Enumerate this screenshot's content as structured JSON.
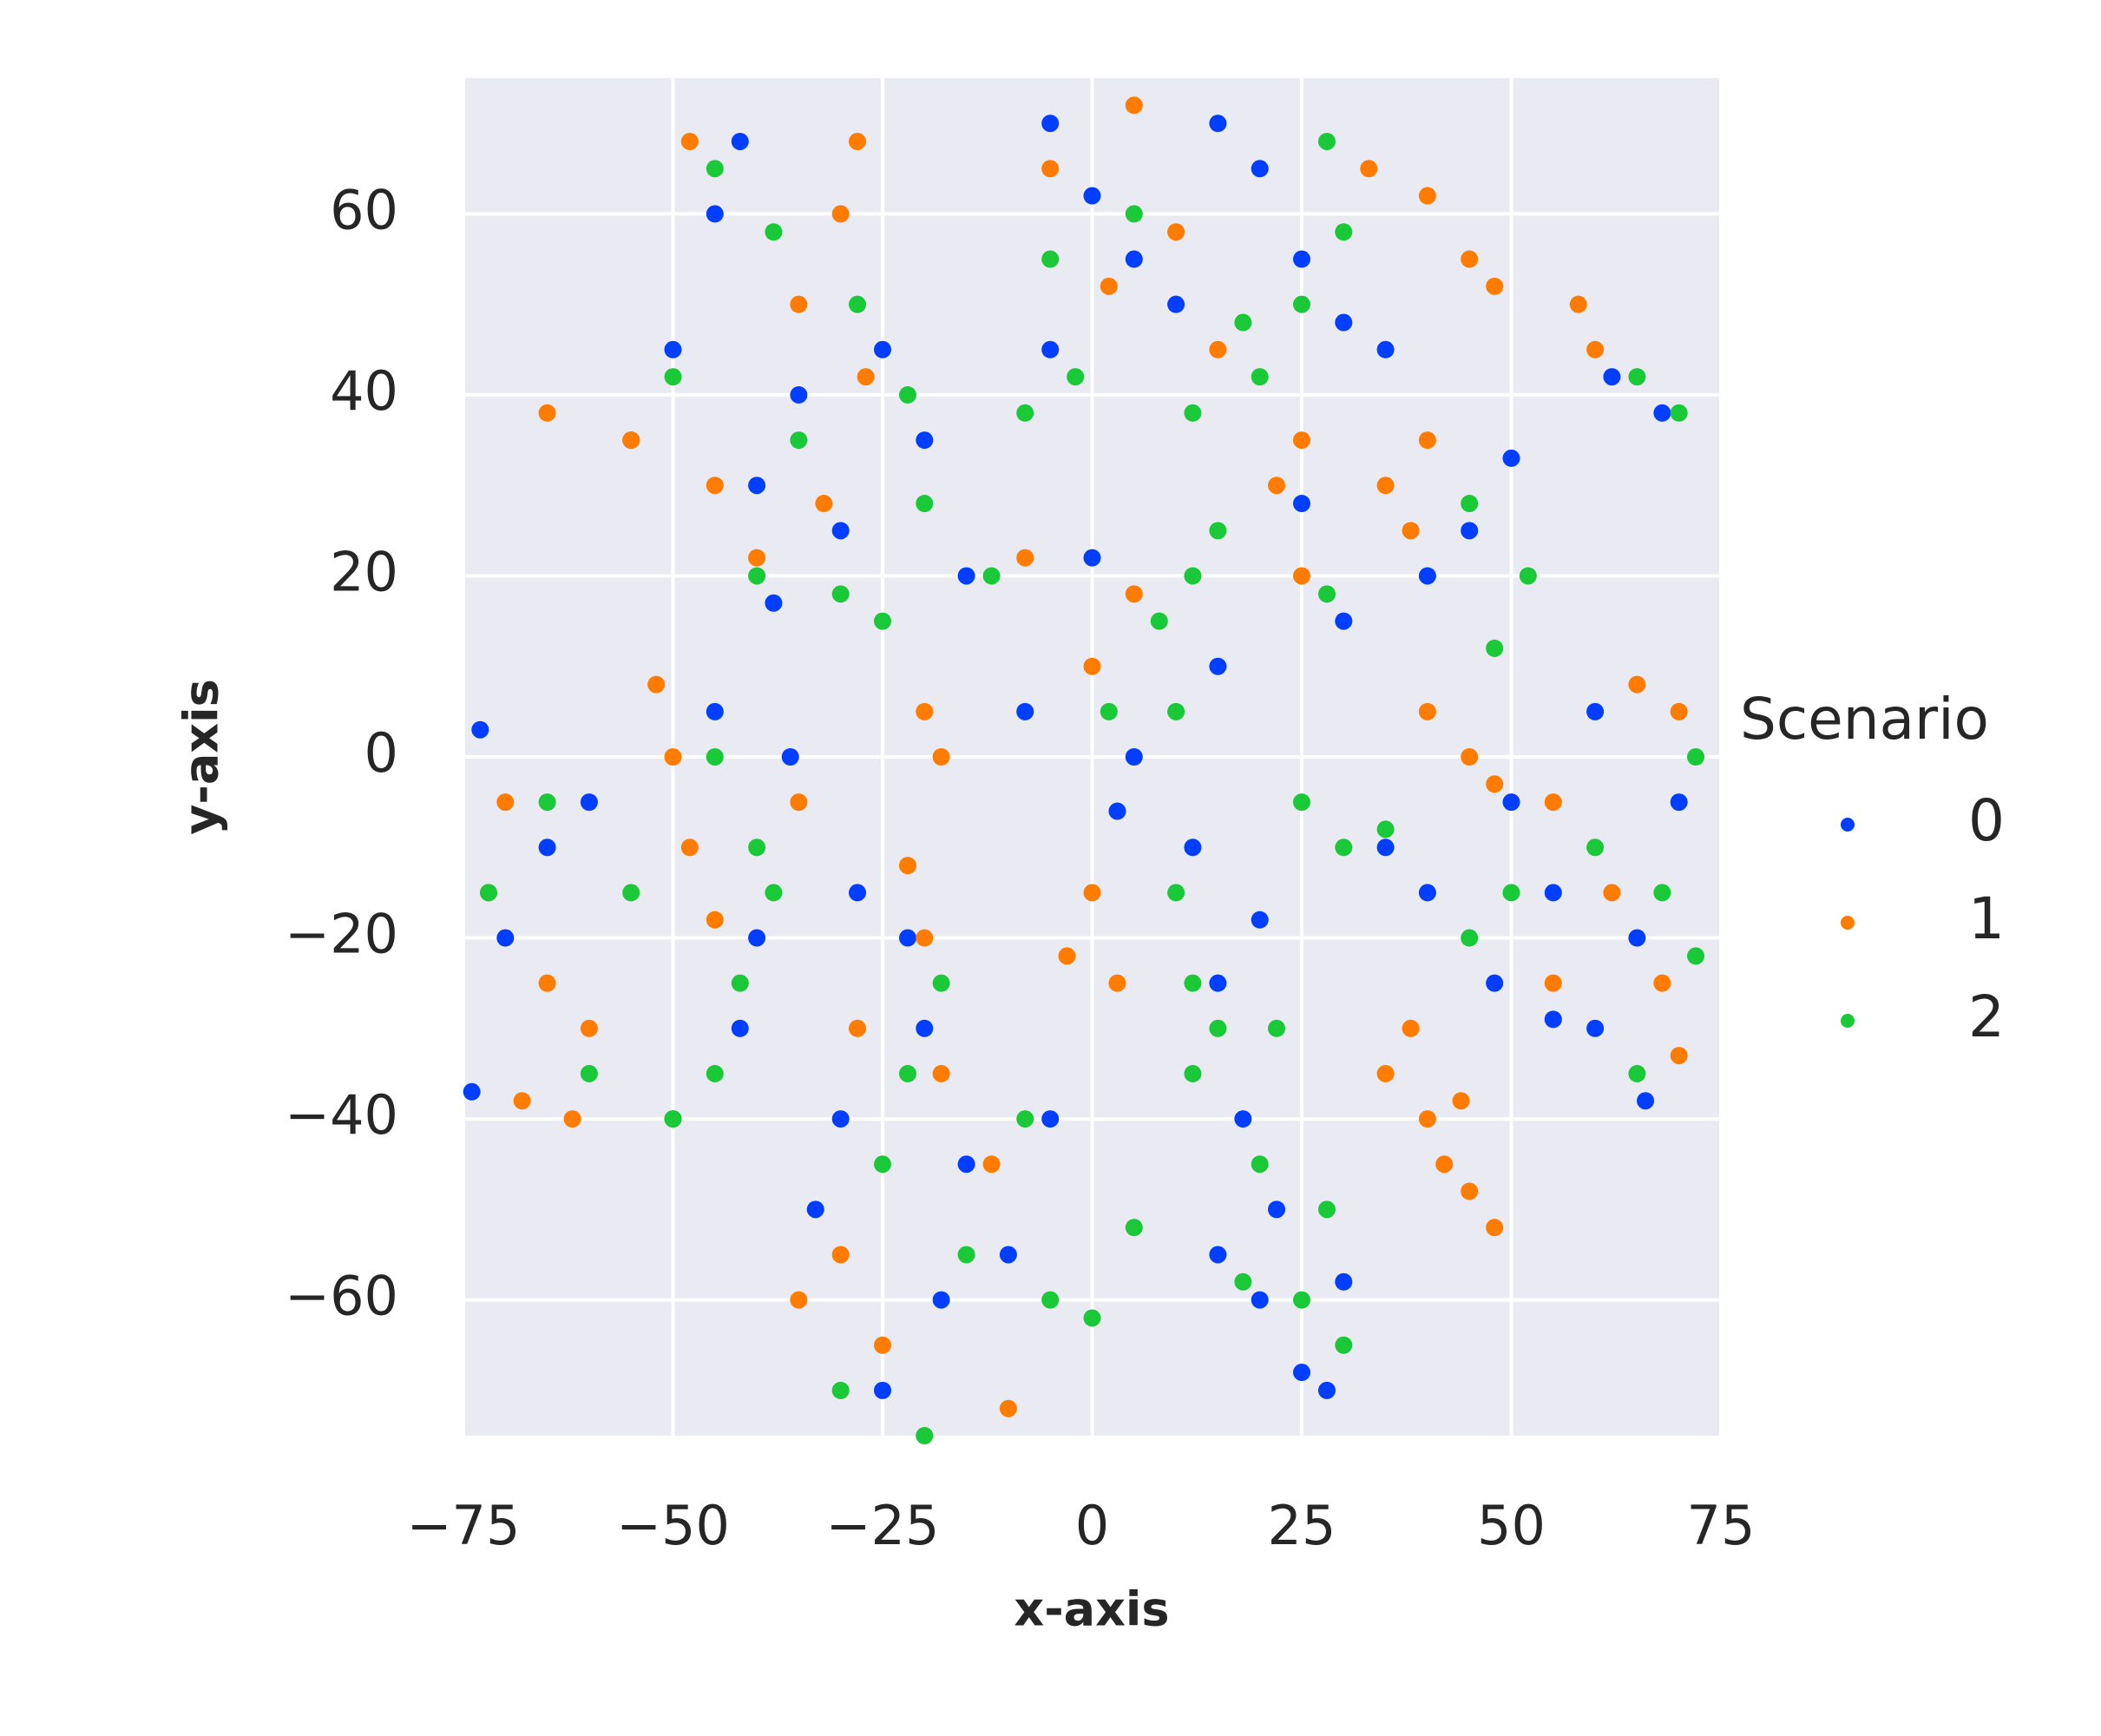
{
  "chart_data": {
    "type": "scatter",
    "xlabel": "x-axis",
    "ylabel": "y-axis",
    "legend_title": "Scenario",
    "legend_position": "outside right",
    "grid": true,
    "background": "#eaeaf2",
    "xlim": [
      -75,
      75
    ],
    "ylim": [
      -75,
      75
    ],
    "xticks": [
      {
        "value": -75,
        "label": "−75"
      },
      {
        "value": -50,
        "label": "−50"
      },
      {
        "value": -25,
        "label": "−25"
      },
      0,
      25,
      50,
      75
    ],
    "yticks": [
      {
        "value": -60,
        "label": "−60"
      },
      {
        "value": -40,
        "label": "−40"
      },
      {
        "value": -20,
        "label": "−20"
      },
      0,
      20,
      40,
      60
    ],
    "series": [
      {
        "name": "0",
        "color": "#023eff",
        "x": [
          -42,
          -45,
          -50,
          -55,
          -40,
          -35,
          -30,
          -25,
          -38,
          -20,
          -5,
          0,
          5,
          15,
          20,
          25,
          -5,
          30,
          10,
          35,
          -15,
          -8,
          0,
          5,
          15,
          25,
          45,
          50,
          40,
          30,
          -73,
          -70,
          -65,
          -74,
          -60,
          -45,
          -40,
          -50,
          -42,
          -36,
          -28,
          -33,
          -20,
          -25,
          -15,
          -10,
          -5,
          -18,
          -30,
          -22,
          12,
          15,
          20,
          18,
          22,
          25,
          28,
          20,
          30,
          15,
          35,
          40,
          50,
          55,
          60,
          65,
          70,
          48,
          60,
          66,
          68,
          62,
          55,
          3
        ],
        "y": [
          68,
          60,
          45,
          35,
          30,
          40,
          25,
          45,
          17,
          35,
          70,
          62,
          55,
          70,
          65,
          55,
          45,
          48,
          50,
          45,
          20,
          5,
          22,
          0,
          10,
          28,
          25,
          33,
          20,
          15,
          3,
          -20,
          -10,
          -37,
          -5,
          5,
          -20,
          -40,
          -30,
          0,
          -15,
          -50,
          -30,
          -70,
          -45,
          -55,
          -40,
          -60,
          -40,
          -20,
          -10,
          -25,
          -18,
          -40,
          -50,
          -68,
          -70,
          -60,
          -58,
          -55,
          -10,
          -15,
          -5,
          -15,
          5,
          -20,
          -5,
          -25,
          -30,
          -38,
          38,
          42,
          -29,
          -6
        ]
      },
      {
        "name": "1",
        "color": "#ff7c00",
        "x": [
          -48,
          -28,
          -30,
          -35,
          -27,
          -65,
          -55,
          -45,
          -32,
          -40,
          -5,
          5,
          10,
          2,
          15,
          25,
          33,
          40,
          45,
          48,
          -20,
          -18,
          0,
          5,
          -8,
          25,
          22,
          35,
          38,
          40,
          -52,
          -50,
          -48,
          -45,
          -70,
          -72,
          -65,
          -60,
          -68,
          -62,
          -35,
          -22,
          -20,
          -28,
          -30,
          -35,
          -25,
          -12,
          -18,
          -10,
          0,
          -3,
          3,
          38,
          40,
          45,
          48,
          42,
          35,
          44,
          40,
          45,
          48,
          55,
          65,
          70,
          68,
          62,
          55,
          70,
          58,
          60
        ],
        "y": [
          68,
          68,
          60,
          50,
          42,
          38,
          35,
          30,
          28,
          22,
          65,
          72,
          58,
          52,
          45,
          35,
          65,
          62,
          55,
          52,
          5,
          0,
          10,
          18,
          22,
          20,
          30,
          30,
          25,
          35,
          8,
          0,
          -10,
          -18,
          -5,
          -15,
          -25,
          -30,
          -38,
          -40,
          -5,
          -12,
          -20,
          -30,
          -55,
          -60,
          -65,
          -45,
          -35,
          -72,
          -15,
          -22,
          -25,
          -30,
          -40,
          -48,
          -52,
          -45,
          -35,
          -38,
          5,
          0,
          -3,
          -5,
          8,
          5,
          -25,
          -15,
          -25,
          -33,
          50,
          45
        ]
      },
      {
        "name": "2",
        "color": "#1ac938",
        "x": [
          -45,
          -38,
          -28,
          -50,
          -35,
          -22,
          -20,
          -40,
          -30,
          -25,
          -8,
          -2,
          -5,
          5,
          12,
          18,
          25,
          30,
          28,
          20,
          -12,
          2,
          8,
          12,
          10,
          15,
          28,
          45,
          52,
          48,
          -72,
          -65,
          -60,
          -55,
          -45,
          -42,
          -40,
          -38,
          -50,
          -45,
          -22,
          -18,
          -25,
          -15,
          -8,
          -30,
          -20,
          -5,
          0,
          5,
          10,
          12,
          15,
          20,
          28,
          25,
          30,
          18,
          12,
          22,
          25,
          30,
          35,
          45,
          50,
          60,
          68,
          72,
          65,
          72,
          65,
          70
        ],
        "y": [
          65,
          58,
          50,
          42,
          35,
          40,
          28,
          20,
          18,
          15,
          38,
          42,
          55,
          60,
          38,
          48,
          50,
          58,
          68,
          42,
          20,
          5,
          15,
          20,
          5,
          25,
          18,
          28,
          20,
          12,
          -15,
          -5,
          -35,
          -15,
          -35,
          -25,
          -10,
          -15,
          -40,
          0,
          -35,
          -25,
          -45,
          -55,
          -40,
          -70,
          -75,
          -60,
          -62,
          -52,
          -15,
          -25,
          -30,
          -45,
          -50,
          -60,
          -65,
          -58,
          -35,
          -30,
          -5,
          -10,
          -8,
          -20,
          -15,
          -10,
          -15,
          -22,
          -35,
          0,
          42,
          38
        ]
      }
    ]
  }
}
